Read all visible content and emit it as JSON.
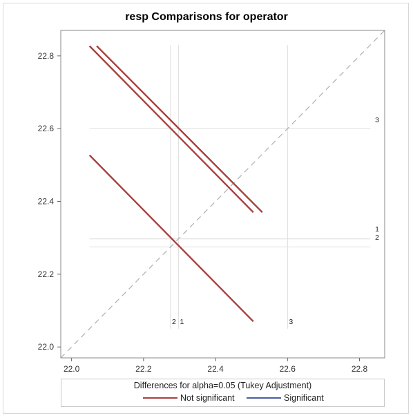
{
  "chart_data": {
    "type": "line",
    "title": "resp Comparisons for operator",
    "xlabel": "",
    "ylabel": "",
    "xlim": [
      21.97,
      22.87
    ],
    "ylim": [
      21.97,
      22.87
    ],
    "x_ticks": [
      "22.0",
      "22.2",
      "22.4",
      "22.6",
      "22.8"
    ],
    "y_ticks": [
      "22.0",
      "22.2",
      "22.4",
      "22.6",
      "22.8"
    ],
    "diagonal": true,
    "reference_lines": [
      {
        "label": "1",
        "value": 22.297
      },
      {
        "label": "2",
        "value": 22.275
      },
      {
        "label": "3",
        "value": 22.6
      }
    ],
    "series": [
      {
        "name": "Not significant",
        "pair": "3-1",
        "x": [
          22.07,
          22.53
        ],
        "y": [
          22.827,
          22.37
        ]
      },
      {
        "name": "Not significant",
        "pair": "3-2",
        "x": [
          22.05,
          22.505
        ],
        "y": [
          22.827,
          22.37
        ]
      },
      {
        "name": "Not significant",
        "pair": "1-2",
        "x": [
          22.05,
          22.505
        ],
        "y": [
          22.527,
          22.07
        ]
      }
    ],
    "legend": {
      "title": "Differences for alpha=0.05 (Tukey Adjustment)",
      "position": "bottom",
      "entries": [
        {
          "label": "Not significant",
          "color": "#a9403d"
        },
        {
          "label": "Significant",
          "color": "#4a5da0"
        }
      ]
    },
    "colors": {
      "not_significant": "#a9403d",
      "significant": "#4a5da0",
      "diagonal": "#b4b4b4",
      "reference": "#dedede"
    }
  }
}
